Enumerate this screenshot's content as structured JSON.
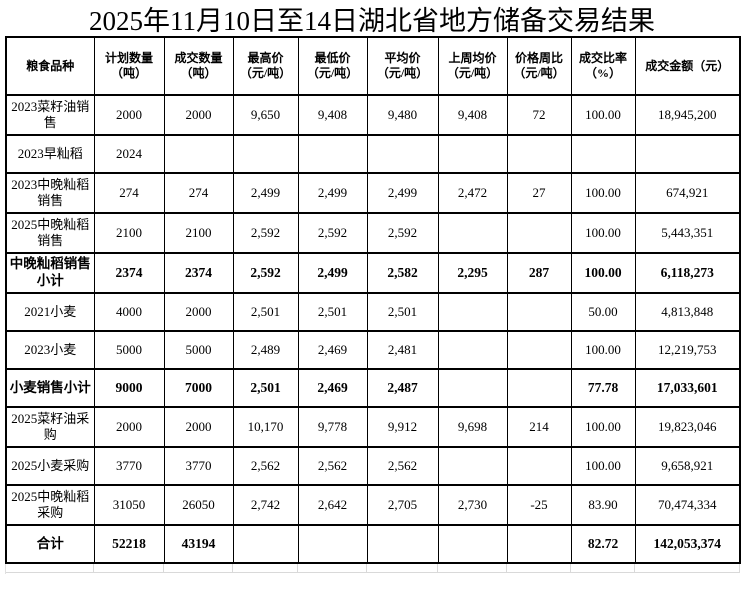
{
  "title": "2025年11月10日至14日湖北省地方储备交易结果",
  "table": {
    "headers": [
      [
        "粮食品种"
      ],
      [
        "计划数量",
        "（吨）"
      ],
      [
        "成交数量",
        "（吨）"
      ],
      [
        "最高价",
        "（元/吨）"
      ],
      [
        "最低价",
        "（元/吨）"
      ],
      [
        "平均价",
        "（元/吨）"
      ],
      [
        "上周均价",
        "（元/吨）"
      ],
      [
        "价格周比",
        "（元/吨）"
      ],
      [
        "成交比率",
        "（%）"
      ],
      [
        "成交金额（元）"
      ]
    ],
    "rows": [
      {
        "cells": [
          "2023菜籽油销售",
          "2000",
          "2000",
          "9,650",
          "9,408",
          "9,480",
          "9,408",
          "72",
          "100.00",
          "18,945,200"
        ]
      },
      {
        "cells": [
          "2023早籼稻",
          "2024",
          "",
          "",
          "",
          "",
          "",
          "",
          "",
          ""
        ]
      },
      {
        "cells": [
          "2023中晚籼稻销售",
          "274",
          "274",
          "2,499",
          "2,499",
          "2,499",
          "2,472",
          "27",
          "100.00",
          "674,921"
        ]
      },
      {
        "cells": [
          "2025中晚籼稻销售",
          "2100",
          "2100",
          "2,592",
          "2,592",
          "2,592",
          "",
          "",
          "100.00",
          "5,443,351"
        ]
      },
      {
        "cells": [
          "中晚籼稻销售小计",
          "2374",
          "2374",
          "2,592",
          "2,499",
          "2,582",
          "2,295",
          "287",
          "100.00",
          "6,118,273"
        ]
      },
      {
        "cells": [
          "2021小麦",
          "4000",
          "2000",
          "2,501",
          "2,501",
          "2,501",
          "",
          "",
          "50.00",
          "4,813,848"
        ]
      },
      {
        "cells": [
          "2023小麦",
          "5000",
          "5000",
          "2,489",
          "2,469",
          "2,481",
          "",
          "",
          "100.00",
          "12,219,753"
        ]
      },
      {
        "cells": [
          "小麦销售小计",
          "9000",
          "7000",
          "2,501",
          "2,469",
          "2,487",
          "",
          "",
          "77.78",
          "17,033,601"
        ]
      },
      {
        "cells": [
          "2025菜籽油采购",
          "2000",
          "2000",
          "10,170",
          "9,778",
          "9,912",
          "9,698",
          "214",
          "100.00",
          "19,823,046"
        ]
      },
      {
        "cells": [
          "2025小麦采购",
          "3770",
          "3770",
          "2,562",
          "2,562",
          "2,562",
          "",
          "",
          "100.00",
          "9,658,921"
        ]
      },
      {
        "cells": [
          "2025中晚籼稻采购",
          "31050",
          "26050",
          "2,742",
          "2,642",
          "2,705",
          "2,730",
          "-25",
          "83.90",
          "70,474,334"
        ]
      },
      {
        "cells": [
          "合计",
          "52218",
          "43194",
          "",
          "",
          "",
          "",
          "",
          "82.72",
          "142,053,374"
        ]
      }
    ]
  }
}
